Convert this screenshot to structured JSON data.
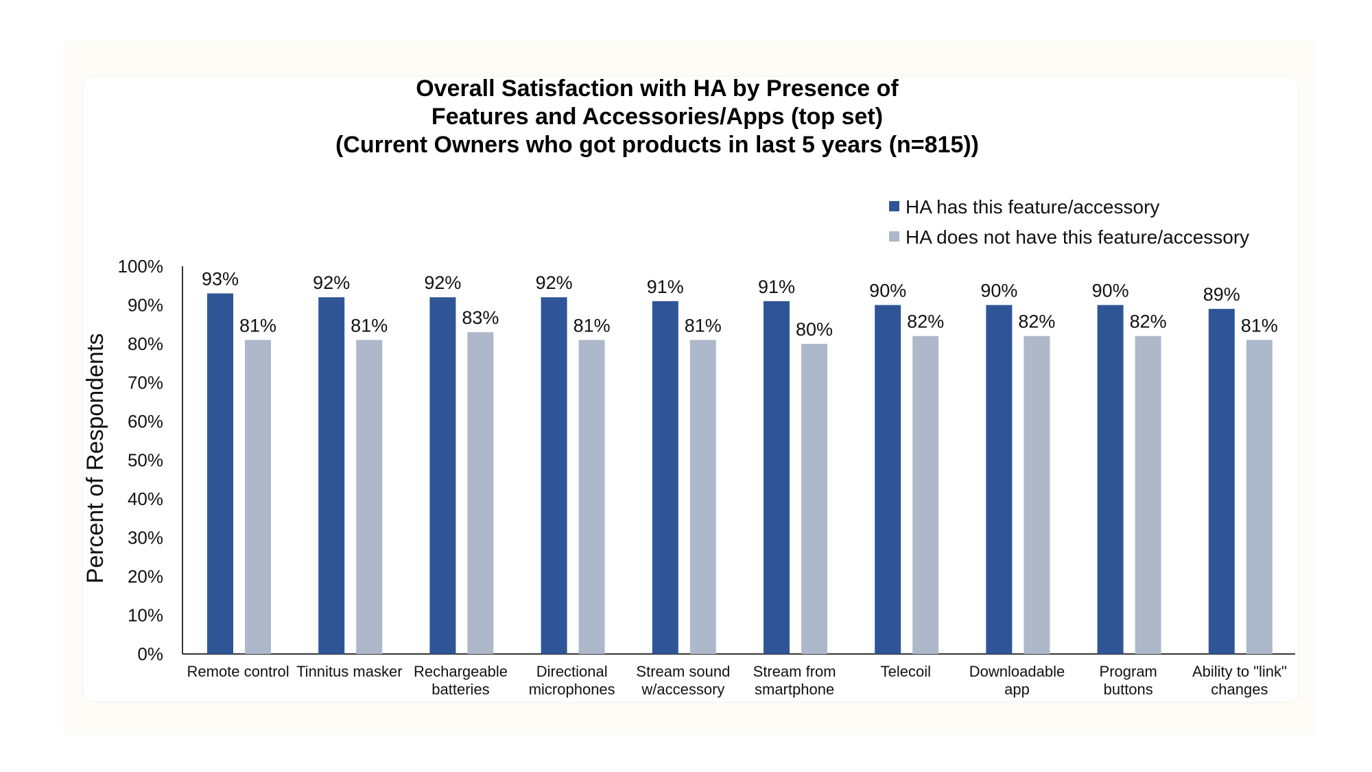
{
  "chart_data": {
    "type": "bar",
    "title_lines": [
      "Overall Satisfaction with HA by Presence of",
      "Features and Accessories/Apps (top set)",
      "(Current Owners who got products in last 5 years (n=815))"
    ],
    "xlabel": "",
    "ylabel": "Percent of Respondents",
    "ylim": [
      0,
      100
    ],
    "yticks": [
      "0%",
      "10%",
      "20%",
      "30%",
      "40%",
      "50%",
      "60%",
      "70%",
      "80%",
      "90%",
      "100%"
    ],
    "grid": false,
    "legend_position": "top-right",
    "categories": [
      [
        "Remote control"
      ],
      [
        "Tinnitus masker"
      ],
      [
        "Rechargeable",
        "batteries"
      ],
      [
        "Directional",
        "microphones"
      ],
      [
        "Stream sound",
        "w/accessory"
      ],
      [
        "Stream from",
        "smartphone"
      ],
      [
        "Telecoil"
      ],
      [
        "Downloadable",
        "app"
      ],
      [
        "Program",
        "buttons"
      ],
      [
        "Ability to \"link\"",
        "changes"
      ]
    ],
    "series": [
      {
        "name": "HA has this feature/accessory",
        "color": "#2f5597",
        "values": [
          93,
          92,
          92,
          92,
          91,
          91,
          90,
          90,
          90,
          89
        ],
        "labels": [
          "93%",
          "92%",
          "92%",
          "92%",
          "91%",
          "91%",
          "90%",
          "90%",
          "90%",
          "89%"
        ]
      },
      {
        "name": "HA does not have this feature/accessory",
        "color": "#adb9ca",
        "values": [
          81,
          81,
          83,
          81,
          81,
          80,
          82,
          82,
          82,
          81
        ],
        "labels": [
          "81%",
          "81%",
          "83%",
          "81%",
          "81%",
          "80%",
          "82%",
          "82%",
          "82%",
          "81%"
        ]
      }
    ]
  }
}
